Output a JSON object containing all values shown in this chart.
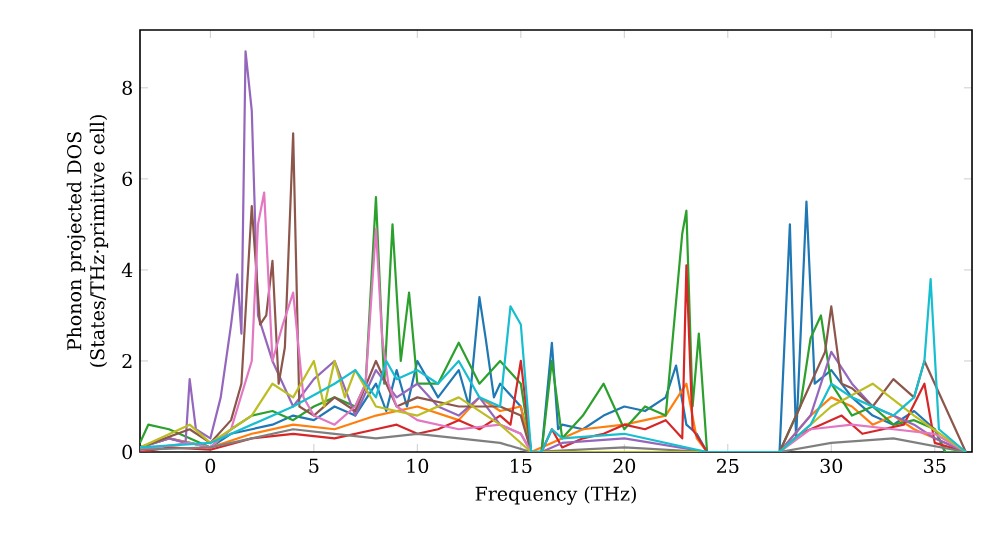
{
  "chart_data": {
    "type": "line",
    "xlabel": "Frequency (THz)",
    "ylabel": "Phonon projected DOS (States/THz·primitive cell)",
    "xlim": [
      -3.4,
      36.8
    ],
    "ylim": [
      0,
      9.27
    ],
    "xticks": [
      0,
      5,
      10,
      15,
      20,
      25,
      30,
      35
    ],
    "yticks": [
      0,
      2,
      4,
      6,
      8
    ],
    "grid": false,
    "series": [
      {
        "color": "#1f77b4",
        "x": [
          -3.4,
          -2,
          -1,
          0,
          1,
          2,
          3,
          4,
          5,
          6,
          7,
          8,
          8.5,
          9,
          9.5,
          10,
          11,
          12,
          12.5,
          13,
          13.3,
          13.7,
          14,
          15,
          15.5,
          16,
          16.5,
          16.8,
          17,
          18,
          19,
          20,
          21,
          22,
          22.5,
          23,
          23.5,
          24,
          27.5,
          28,
          28.3,
          28.8,
          29.2,
          30,
          31,
          32,
          33,
          34,
          35,
          35.5,
          36.5
        ],
        "values": [
          0.1,
          0.3,
          0.2,
          0.1,
          0.4,
          0.5,
          0.6,
          0.8,
          0.7,
          1.0,
          0.8,
          1.5,
          0.9,
          1.8,
          1.0,
          2.0,
          1.2,
          1.8,
          1.0,
          3.4,
          2.5,
          1.2,
          1.5,
          1.0,
          0,
          0,
          2.4,
          0.5,
          0.6,
          0.5,
          0.8,
          1.0,
          0.9,
          1.2,
          1.9,
          0.6,
          0.4,
          0,
          0,
          5.0,
          0.3,
          5.5,
          1.5,
          1.8,
          1.2,
          0.8,
          0.6,
          0.9,
          0.5,
          0,
          0
        ]
      },
      {
        "color": "#ff7f0e",
        "x": [
          -3.4,
          -2,
          0,
          2,
          4,
          6,
          8,
          10,
          12,
          13,
          14,
          15,
          15.5,
          18,
          20,
          22,
          23,
          23.5,
          24,
          27.5,
          29,
          30,
          31,
          32,
          33,
          34,
          35,
          36.5
        ],
        "values": [
          0.1,
          0.3,
          0.1,
          0.4,
          0.6,
          0.5,
          0.8,
          1.0,
          0.7,
          1.2,
          0.9,
          1.0,
          0,
          0.5,
          0.6,
          0.8,
          1.5,
          0.3,
          0,
          0,
          0.8,
          1.2,
          1.0,
          0.6,
          0.8,
          0.5,
          0.3,
          0
        ]
      },
      {
        "color": "#2ca02c",
        "x": [
          -3.4,
          -3,
          -2,
          -1,
          0,
          1,
          2,
          3,
          4,
          5,
          6,
          7,
          7.5,
          8,
          8.4,
          8.8,
          9.2,
          9.6,
          10,
          11,
          12,
          13,
          14,
          15,
          15.5,
          16,
          16.5,
          17,
          18,
          19,
          20,
          21,
          22,
          22.8,
          23,
          23.3,
          23.6,
          24,
          27.5,
          28.5,
          29,
          29.5,
          30,
          31,
          32,
          33,
          34,
          35,
          35.5,
          36.5
        ],
        "values": [
          0.2,
          0.6,
          0.5,
          0.3,
          0.1,
          0.5,
          0.8,
          0.9,
          0.7,
          1.0,
          1.2,
          1.0,
          1.5,
          5.6,
          1.5,
          5.0,
          2.0,
          3.5,
          1.5,
          1.5,
          2.4,
          1.5,
          2.0,
          1.5,
          0,
          0,
          2.0,
          0.3,
          0.8,
          1.5,
          0.5,
          1.0,
          0.8,
          4.8,
          5.3,
          1.0,
          2.6,
          0,
          0,
          1.0,
          2.5,
          3.0,
          1.5,
          0.8,
          1.0,
          0.6,
          0.7,
          0.5,
          0,
          0
        ]
      },
      {
        "color": "#d62728",
        "x": [
          -3.4,
          -2,
          0,
          2,
          4,
          6,
          8,
          9,
          10,
          11,
          12,
          13,
          14,
          14.5,
          15,
          15.5,
          16,
          16.5,
          17,
          18,
          19,
          20,
          21,
          22,
          22.8,
          23,
          23.3,
          24,
          27.5,
          28.5,
          29.5,
          30.5,
          31.5,
          32.5,
          33.5,
          34.5,
          35,
          36.5
        ],
        "values": [
          0,
          0.1,
          0.05,
          0.3,
          0.4,
          0.3,
          0.5,
          0.6,
          0.4,
          0.5,
          0.7,
          0.5,
          0.8,
          0.6,
          2.0,
          0,
          0,
          0.5,
          0.1,
          0.3,
          0.4,
          0.6,
          0.5,
          0.7,
          0.3,
          4.1,
          0.5,
          0,
          0,
          0.4,
          0.6,
          0.8,
          0.4,
          0.5,
          0.6,
          1.5,
          0.2,
          0
        ]
      },
      {
        "color": "#9467bd",
        "x": [
          -3.4,
          -2,
          -1.2,
          -1,
          -0.7,
          0,
          0.5,
          1,
          1.3,
          1.5,
          1.7,
          2,
          2.3,
          3,
          3.5,
          4,
          5,
          6,
          7,
          8,
          9,
          10,
          11,
          12,
          13,
          14,
          15,
          15.5,
          16,
          17,
          20,
          24,
          27.5,
          29,
          30,
          31,
          32,
          33,
          34,
          35,
          36.5
        ],
        "values": [
          0.1,
          0.3,
          0.2,
          1.6,
          0.5,
          0.3,
          1.2,
          2.8,
          3.9,
          2.6,
          8.8,
          7.5,
          3.0,
          2.0,
          1.5,
          1.0,
          1.6,
          2.0,
          0.8,
          1.8,
          1.2,
          1.5,
          1.0,
          0.8,
          1.2,
          0.6,
          0.4,
          0,
          0,
          0.2,
          0.3,
          0,
          0,
          0.8,
          2.2,
          1.5,
          1.0,
          0.8,
          0.6,
          0.3,
          0
        ]
      },
      {
        "color": "#8c564b",
        "x": [
          -3.4,
          -1,
          0,
          1,
          1.5,
          2,
          2.4,
          2.7,
          3,
          3.3,
          3.6,
          4,
          4.3,
          5,
          6,
          7,
          8,
          9,
          10,
          12,
          14,
          15,
          15.5,
          20,
          27.5,
          29,
          29.7,
          30,
          30.5,
          31,
          32,
          33,
          34,
          34.5,
          35,
          36.5
        ],
        "values": [
          0.1,
          0.5,
          0.2,
          0.7,
          1.5,
          5.4,
          2.8,
          3.0,
          4.2,
          1.5,
          2.3,
          7.0,
          1.0,
          0.8,
          1.2,
          0.9,
          2.0,
          1.0,
          1.2,
          1.0,
          1.0,
          0.8,
          0,
          0,
          0,
          1.5,
          2.2,
          3.2,
          1.5,
          1.4,
          1.0,
          1.6,
          1.2,
          2.0,
          1.5,
          0
        ]
      },
      {
        "color": "#e377c2",
        "x": [
          -3.4,
          -1,
          0,
          1,
          2,
          2.3,
          2.6,
          3,
          3.5,
          4,
          4.5,
          5,
          6,
          7,
          7.5,
          8,
          8.3,
          8.6,
          9,
          10,
          12,
          14,
          15,
          15.5,
          27.5,
          29,
          31,
          33,
          35,
          36.5
        ],
        "values": [
          0.05,
          0.2,
          0.1,
          0.5,
          2.0,
          5.0,
          5.7,
          2.0,
          2.8,
          3.5,
          1.2,
          0.8,
          0.6,
          1.0,
          1.5,
          4.9,
          2.5,
          1.5,
          1.0,
          0.7,
          0.5,
          0.6,
          0.4,
          0,
          0,
          0.5,
          0.6,
          0.5,
          0.4,
          0
        ]
      },
      {
        "color": "#7f7f7f",
        "x": [
          -3.4,
          0,
          2,
          4,
          6,
          8,
          10,
          12,
          14,
          15.5,
          20,
          24,
          27.5,
          30,
          33,
          36.5
        ],
        "values": [
          0.05,
          0.1,
          0.3,
          0.5,
          0.4,
          0.3,
          0.4,
          0.3,
          0.2,
          0,
          0.1,
          0,
          0,
          0.2,
          0.3,
          0
        ]
      },
      {
        "color": "#bcbd22",
        "x": [
          -3.4,
          -1,
          0,
          2,
          3,
          4,
          5,
          5.5,
          6,
          6.5,
          7,
          8,
          10,
          12,
          14,
          15.5,
          27.5,
          30,
          32,
          34,
          36.5
        ],
        "values": [
          0.1,
          0.6,
          0.2,
          0.8,
          1.5,
          1.2,
          2.0,
          1.0,
          2.0,
          1.2,
          1.8,
          1.0,
          0.8,
          1.2,
          0.6,
          0,
          0,
          1.0,
          1.5,
          0.8,
          0
        ]
      },
      {
        "color": "#17becf",
        "x": [
          -3.4,
          0,
          2,
          4,
          6,
          7,
          8,
          8.5,
          9,
          10,
          11,
          12,
          13,
          14,
          14.5,
          15,
          15.5,
          16,
          16.5,
          17,
          20,
          24,
          27.5,
          29,
          30,
          31,
          32,
          33,
          34,
          34.5,
          34.8,
          35.2,
          36.5
        ],
        "values": [
          0.1,
          0.2,
          0.6,
          1.0,
          1.5,
          1.8,
          1.2,
          2.0,
          1.6,
          1.8,
          1.5,
          2.0,
          1.2,
          1.0,
          3.2,
          2.8,
          0,
          0,
          0.5,
          0.3,
          0.4,
          0,
          0,
          0.6,
          1.5,
          1.2,
          1.0,
          0.8,
          1.2,
          2.0,
          3.8,
          0.5,
          0
        ]
      }
    ]
  }
}
